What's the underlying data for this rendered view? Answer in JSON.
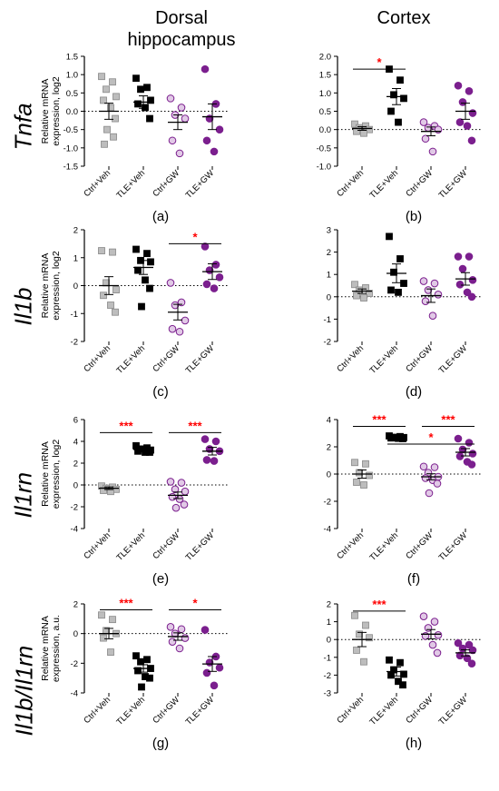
{
  "column_titles": {
    "left": "Dorsal\nhippocampus",
    "right": "Cortex"
  },
  "row_labels": [
    "Tnfa",
    "Il1b",
    "Il1rn",
    "Il1b/Il1rn"
  ],
  "groups": [
    "Ctrl+Veh",
    "TLE+Veh",
    "Ctrl+GW",
    "TLE+GW"
  ],
  "colors": {
    "gray": "#bdbdbd",
    "black": "#000000",
    "lilac": "#e1c9e6",
    "purple": "#7b1f8e",
    "edge_purple": "#7b1f8e",
    "sig": "#ff0000"
  },
  "chart_data": [
    {
      "type": "scatter",
      "panel": "(a)",
      "ylabel": "Relative mRNA\nexpression, log2",
      "ylim": [
        -1.5,
        1.5
      ],
      "yticks": [
        -1.5,
        -1.0,
        -0.5,
        0.0,
        0.5,
        1.0,
        1.5
      ],
      "ytick_labels": [
        "-1.5",
        "-1.0",
        "-0.5",
        "0.0",
        "0.5",
        "1.0",
        "1.5"
      ],
      "series": [
        {
          "values": [
            0.95,
            0.8,
            0.6,
            0.4,
            0.3,
            0.1,
            -0.2,
            -0.5,
            -0.7,
            -0.9
          ],
          "mean": 0.0,
          "sem": 0.22
        },
        {
          "values": [
            0.9,
            0.65,
            0.6,
            0.3,
            0.2,
            0.1,
            -0.2
          ],
          "mean": 0.25,
          "sem": 0.17
        },
        {
          "values": [
            0.35,
            0.1,
            -0.1,
            -0.2,
            -0.8,
            -1.15
          ],
          "mean": -0.3,
          "sem": 0.2
        },
        {
          "values": [
            1.15,
            0.2,
            -0.2,
            -0.5,
            -0.8,
            -1.1
          ],
          "mean": -0.15,
          "sem": 0.35
        }
      ],
      "sig": []
    },
    {
      "type": "scatter",
      "panel": "(b)",
      "ylabel": "",
      "ylim": [
        -1.0,
        2.0
      ],
      "yticks": [
        -1.0,
        -0.5,
        0.0,
        0.5,
        1.0,
        1.5,
        2.0
      ],
      "ytick_labels": [
        "-1.0",
        "-0.5",
        "0.0",
        "0.5",
        "1.0",
        "1.5",
        "2.0"
      ],
      "series": [
        {
          "values": [
            0.15,
            0.1,
            0.05,
            0.0,
            -0.05,
            -0.1
          ],
          "mean": 0.03,
          "sem": 0.05
        },
        {
          "values": [
            1.65,
            1.35,
            0.95,
            0.85,
            0.5,
            0.2
          ],
          "mean": 0.9,
          "sem": 0.22
        },
        {
          "values": [
            0.2,
            0.1,
            0.05,
            0.0,
            -0.25,
            -0.6
          ],
          "mean": -0.05,
          "sem": 0.12
        },
        {
          "values": [
            1.2,
            1.05,
            0.75,
            0.45,
            0.2,
            0.1,
            -0.3
          ],
          "mean": 0.5,
          "sem": 0.22
        }
      ],
      "sig": [
        {
          "from": 0,
          "to": 1,
          "label": "*",
          "y": 1.65
        }
      ]
    },
    {
      "type": "scatter",
      "panel": "(c)",
      "ylabel": "Relative mRNA\nexpression, log2",
      "ylim": [
        -2,
        2
      ],
      "yticks": [
        -2,
        -1,
        0,
        1,
        2
      ],
      "ytick_labels": [
        "-2",
        "-1",
        "0",
        "1",
        "2"
      ],
      "series": [
        {
          "values": [
            1.25,
            1.2,
            0.1,
            -0.15,
            -0.35,
            -0.7,
            -0.95
          ],
          "mean": 0.0,
          "sem": 0.32
        },
        {
          "values": [
            1.3,
            1.15,
            0.9,
            0.85,
            0.55,
            0.2,
            -0.1,
            -0.75
          ],
          "mean": 0.65,
          "sem": 0.25
        },
        {
          "values": [
            0.1,
            -0.6,
            -0.7,
            -1.25,
            -1.55,
            -1.65
          ],
          "mean": -0.95,
          "sem": 0.28
        },
        {
          "values": [
            1.4,
            0.75,
            0.55,
            0.3,
            0.05,
            -0.1
          ],
          "mean": 0.5,
          "sem": 0.28
        }
      ],
      "sig": [
        {
          "from": 2,
          "to": 3,
          "label": "*",
          "y": 1.5
        }
      ]
    },
    {
      "type": "scatter",
      "panel": "(d)",
      "ylabel": "",
      "ylim": [
        -2,
        3
      ],
      "yticks": [
        -2,
        -1,
        0,
        1,
        2,
        3
      ],
      "ytick_labels": [
        "-2",
        "-1",
        "0",
        "1",
        "2",
        "3"
      ],
      "series": [
        {
          "values": [
            0.55,
            0.4,
            0.3,
            0.15,
            0.05,
            -0.05
          ],
          "mean": 0.25,
          "sem": 0.1
        },
        {
          "values": [
            2.7,
            1.7,
            1.1,
            0.6,
            0.3,
            0.2
          ],
          "mean": 1.05,
          "sem": 0.42
        },
        {
          "values": [
            0.7,
            0.6,
            0.3,
            0.1,
            -0.2,
            -0.85
          ],
          "mean": 0.05,
          "sem": 0.3
        },
        {
          "values": [
            1.8,
            1.8,
            1.25,
            0.75,
            0.55,
            0.2,
            0.0
          ],
          "mean": 0.8,
          "sem": 0.28
        }
      ],
      "sig": []
    },
    {
      "type": "scatter",
      "panel": "(e)",
      "ylabel": "Relative mRNA\nexpression, log2",
      "ylim": [
        -4,
        6
      ],
      "yticks": [
        -4,
        -2,
        0,
        2,
        4,
        6
      ],
      "ytick_labels": [
        "-4",
        "-2",
        "0",
        "2",
        "4",
        "6"
      ],
      "series": [
        {
          "values": [
            -0.1,
            -0.2,
            -0.3,
            -0.4,
            -0.5,
            -0.6
          ],
          "mean": -0.3,
          "sem": 0.12
        },
        {
          "values": [
            3.6,
            3.4,
            3.3,
            3.2,
            3.1,
            3.0,
            3.0
          ],
          "mean": 3.25,
          "sem": 0.08
        },
        {
          "values": [
            0.3,
            0.2,
            -0.4,
            -0.6,
            -1.1,
            -1.3,
            -1.8,
            -2.1
          ],
          "mean": -0.95,
          "sem": 0.3
        },
        {
          "values": [
            4.2,
            4.0,
            3.3,
            3.1,
            2.3,
            2.2
          ],
          "mean": 3.1,
          "sem": 0.35
        }
      ],
      "sig": [
        {
          "from": 0,
          "to": 1,
          "label": "***",
          "y": 4.8
        },
        {
          "from": 2,
          "to": 3,
          "label": "***",
          "y": 4.8
        }
      ]
    },
    {
      "type": "scatter",
      "panel": "(f)",
      "ylabel": "",
      "ylim": [
        -4,
        4
      ],
      "yticks": [
        -4,
        -2,
        0,
        2,
        4
      ],
      "ytick_labels": [
        "-4",
        "-2",
        "0",
        "2",
        "4"
      ],
      "series": [
        {
          "values": [
            0.85,
            0.75,
            0.1,
            -0.1,
            -0.6,
            -0.8
          ],
          "mean": 0.0,
          "sem": 0.3
        },
        {
          "values": [
            2.8,
            2.75,
            2.7,
            2.68,
            2.65,
            2.62,
            2.6
          ],
          "mean": 2.7,
          "sem": 0.03
        },
        {
          "values": [
            0.55,
            0.5,
            0.1,
            -0.2,
            -0.3,
            -0.45,
            -0.7,
            -1.4
          ],
          "mean": -0.2,
          "sem": 0.22
        },
        {
          "values": [
            2.6,
            2.3,
            1.8,
            1.5,
            1.3,
            0.9,
            0.7
          ],
          "mean": 1.6,
          "sem": 0.27
        }
      ],
      "sig": [
        {
          "from": 0,
          "to": 1,
          "label": "***",
          "y": 3.5
        },
        {
          "from": 2,
          "to": 3,
          "label": "***",
          "y": 3.5
        },
        {
          "from": 1,
          "to": 3,
          "label": "*",
          "y": 2.2
        }
      ]
    },
    {
      "type": "scatter",
      "panel": "(g)",
      "ylabel": "Relative mRNA\nexpression, a.u.",
      "ylim": [
        -4,
        2
      ],
      "yticks": [
        -4,
        -2,
        0,
        2
      ],
      "ytick_labels": [
        "-4",
        "-2",
        "0",
        "2"
      ],
      "series": [
        {
          "values": [
            1.25,
            0.95,
            0.2,
            0.0,
            -0.3,
            -1.25
          ],
          "mean": 0.0,
          "sem": 0.35
        },
        {
          "values": [
            -1.5,
            -1.75,
            -1.9,
            -2.35,
            -2.5,
            -2.9,
            -3.0,
            -3.6
          ],
          "mean": -2.35,
          "sem": 0.25
        },
        {
          "values": [
            0.45,
            0.3,
            0.0,
            -0.3,
            -0.55,
            -1.0
          ],
          "mean": -0.2,
          "sem": 0.25
        },
        {
          "values": [
            0.25,
            -1.55,
            -1.95,
            -2.3,
            -2.65,
            -3.5
          ],
          "mean": -2.05,
          "sem": 0.5
        }
      ],
      "sig": [
        {
          "from": 0,
          "to": 1,
          "label": "***",
          "y": 1.6
        },
        {
          "from": 2,
          "to": 3,
          "label": "*",
          "y": 1.6
        }
      ]
    },
    {
      "type": "scatter",
      "panel": "(h)",
      "ylabel": "",
      "ylim": [
        -3,
        2
      ],
      "yticks": [
        -3,
        -2,
        -1,
        0,
        1,
        2
      ],
      "ytick_labels": [
        "-3",
        "-2",
        "-1",
        "0",
        "1",
        "2"
      ],
      "series": [
        {
          "values": [
            1.35,
            0.8,
            0.3,
            0.1,
            -0.6,
            -1.25
          ],
          "mean": 0.0,
          "sem": 0.4
        },
        {
          "values": [
            -1.15,
            -1.3,
            -1.7,
            -1.95,
            -2.0,
            -2.35,
            -2.55
          ],
          "mean": -1.8,
          "sem": 0.25
        },
        {
          "values": [
            1.3,
            1.0,
            0.65,
            0.25,
            0.2,
            -0.3,
            -0.75
          ],
          "mean": 0.3,
          "sem": 0.26
        },
        {
          "values": [
            -0.2,
            -0.3,
            -0.5,
            -0.6,
            -0.9,
            -1.05,
            -1.35
          ],
          "mean": -0.75,
          "sem": 0.17
        }
      ],
      "sig": [
        {
          "from": 0,
          "to": 1,
          "label": "***",
          "y": 1.6
        }
      ]
    }
  ]
}
